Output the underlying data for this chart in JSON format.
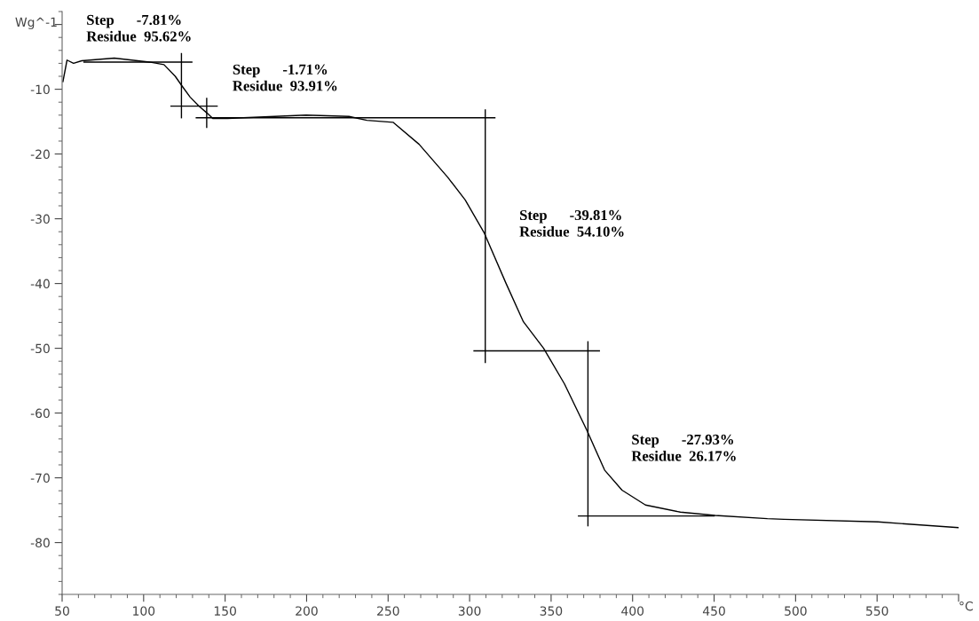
{
  "chart_data": {
    "type": "line",
    "xlim": [
      50,
      600
    ],
    "ylim": [
      -88,
      2
    ],
    "xticks": [
      50,
      100,
      150,
      200,
      250,
      300,
      350,
      400,
      450,
      500,
      550,
      {
        "value": 600,
        "label": null
      }
    ],
    "yticks": [
      -80,
      -70,
      -60,
      -50,
      -40,
      -30,
      -20,
      -10,
      {
        "value": 0,
        "label": null
      }
    ],
    "xlabel": "°C",
    "ylabel": "Wg^-1",
    "grid": false,
    "marker": "none",
    "line_style": "solid",
    "series": [
      {
        "color": "#000000",
        "x": [
          50.5,
          53,
          57,
          62,
          82,
          103.5,
          112.5,
          119.4,
          123,
          128.5,
          133.9,
          139,
          142.4,
          151.5,
          199.6,
          226,
          237,
          253,
          269,
          286.6,
          297.3,
          309,
          322.4,
          333,
          345.4,
          358.2,
          372,
          382.8,
          393.5,
          407.9,
          429.3,
          450.6,
          482.7,
          492.8,
          550.5,
          600
        ],
        "values": [
          -8.8,
          -5.5,
          -6.0,
          -5.6,
          -5.2,
          -5.8,
          -6.2,
          -8.0,
          -9.3,
          -11.2,
          -12.6,
          -13.7,
          -14.5,
          -14.5,
          -14.0,
          -14.2,
          -14.8,
          -15.1,
          -18.5,
          -23.6,
          -27.1,
          -32.2,
          -40.0,
          -45.9,
          -50.0,
          -55.5,
          -62.7,
          -68.8,
          -71.9,
          -74.2,
          -75.3,
          -75.8,
          -76.3,
          -76.4,
          -76.8,
          -77.7
        ]
      },
      {
        "color": "#000000",
        "x": [
          63.4,
          129.6
        ],
        "values": [
          -5.8,
          -5.8
        ]
      },
      {
        "color": "#000000",
        "x": [
          123.2,
          123.2
        ],
        "values": [
          -4.5,
          -14.4
        ]
      },
      {
        "color": "#000000",
        "x": [
          116.8,
          145.1
        ],
        "values": [
          -12.6,
          -12.6
        ]
      },
      {
        "color": "#000000",
        "x": [
          138.7,
          138.7
        ],
        "values": [
          -11.4,
          -15.9
        ]
      },
      {
        "color": "#000000",
        "x": [
          132.3,
          315.5
        ],
        "values": [
          -14.4,
          -14.4
        ]
      },
      {
        "color": "#000000",
        "x": [
          309.6,
          309.6
        ],
        "values": [
          -13.2,
          -52.2
        ]
      },
      {
        "color": "#000000",
        "x": [
          302.7,
          379.6
        ],
        "values": [
          -50.4,
          -50.4
        ]
      },
      {
        "color": "#000000",
        "x": [
          372.6,
          372.6
        ],
        "values": [
          -49.0,
          -77.4
        ]
      },
      {
        "color": "#000000",
        "x": [
          366.8,
          450
        ],
        "values": [
          -75.9,
          -75.9
        ]
      }
    ],
    "annotations": [
      "Step      -7.81%\nResidue  95.62%",
      "Step      -1.71%\nResidue  93.91%",
      "Step      -39.81%\nResidue  54.10%",
      "Step      -27.93%\nResidue  26.17%"
    ]
  }
}
